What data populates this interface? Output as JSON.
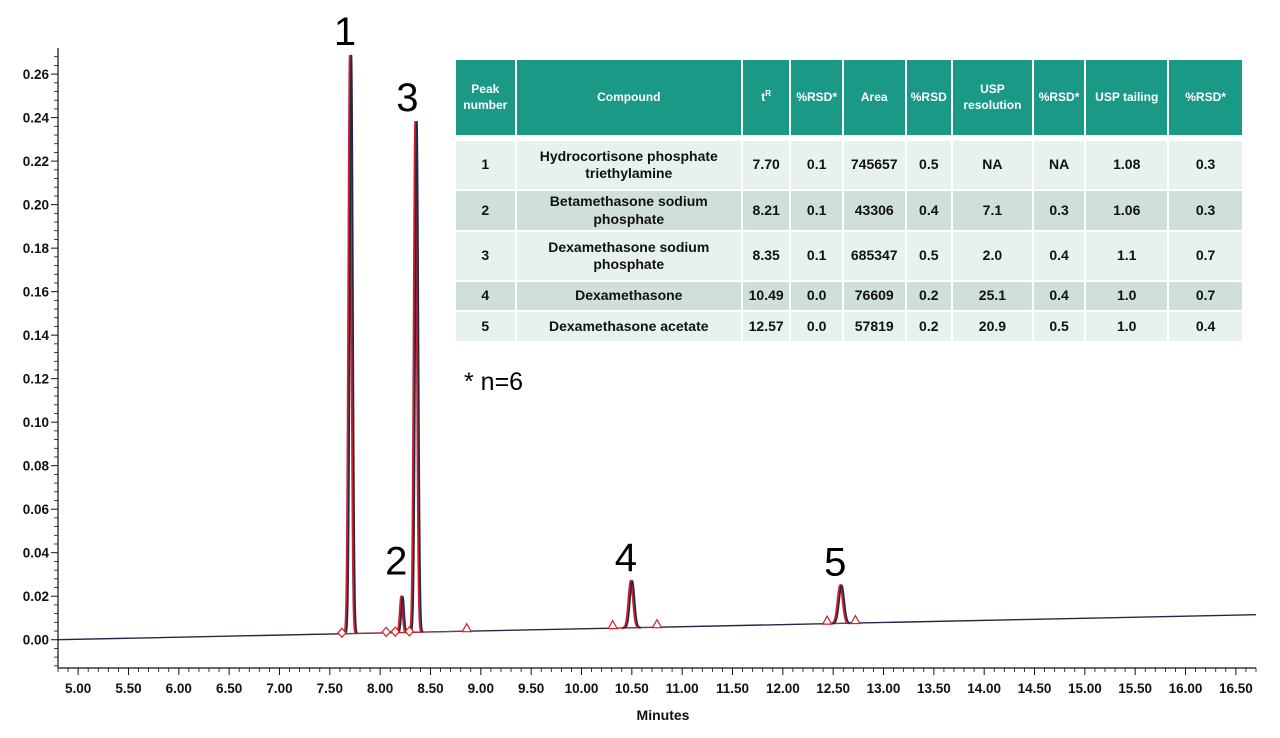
{
  "chart_data": {
    "type": "line",
    "xlabel": "Minutes",
    "ylabel": "",
    "xlim": [
      4.8,
      16.7
    ],
    "ylim": [
      -0.013,
      0.272
    ],
    "xticks": [
      "5.00",
      "5.50",
      "6.00",
      "6.50",
      "7.00",
      "7.50",
      "8.00",
      "8.50",
      "9.00",
      "9.50",
      "10.00",
      "10.50",
      "11.00",
      "11.50",
      "12.00",
      "12.50",
      "13.00",
      "13.50",
      "14.00",
      "14.50",
      "15.00",
      "15.50",
      "16.00",
      "16.50"
    ],
    "yticks": [
      "0.00",
      "0.02",
      "0.04",
      "0.06",
      "0.08",
      "0.10",
      "0.12",
      "0.14",
      "0.16",
      "0.18",
      "0.20",
      "0.22",
      "0.24",
      "0.26"
    ],
    "baseline": {
      "start": [
        4.8,
        0.0
      ],
      "end": [
        16.7,
        0.0115
      ]
    },
    "peaks": [
      {
        "label": "1",
        "time": 7.7,
        "height": 0.266,
        "width": 0.03
      },
      {
        "label": "2",
        "time": 8.21,
        "height": 0.0165,
        "width": 0.027
      },
      {
        "label": "3",
        "time": 8.35,
        "height": 0.235,
        "width": 0.031
      },
      {
        "label": "4",
        "time": 10.49,
        "height": 0.0215,
        "width": 0.045
      },
      {
        "label": "5",
        "time": 12.57,
        "height": 0.0175,
        "width": 0.05
      }
    ],
    "integration_markers": [
      {
        "x": 7.62,
        "shape": "diamond"
      },
      {
        "x": 8.06,
        "shape": "diamond"
      },
      {
        "x": 8.15,
        "shape": "diamond"
      },
      {
        "x": 8.29,
        "shape": "diamond"
      },
      {
        "x": 8.86,
        "shape": "triangle"
      },
      {
        "x": 10.31,
        "shape": "triangle"
      },
      {
        "x": 10.75,
        "shape": "triangle"
      },
      {
        "x": 12.44,
        "shape": "triangle"
      },
      {
        "x": 12.72,
        "shape": "triangle"
      }
    ],
    "colors": {
      "trace": "#1f2a44",
      "fit": "#d0202a",
      "baseline": "#1f2a44",
      "markers": "#d0202a",
      "axis": "#111111"
    },
    "grid": false,
    "legend": "none"
  },
  "table": {
    "headers": [
      "Peak number",
      "Compound",
      "t",
      "%RSD*",
      "Area",
      "%RSD",
      "USP resolution",
      "%RSD*",
      "USP tailing",
      "%RSD*"
    ],
    "tr_superscript": "R",
    "rows": [
      [
        "1",
        "Hydrocortisone phosphate triethylamine",
        "7.70",
        "0.1",
        "745657",
        "0.5",
        "NA",
        "NA",
        "1.08",
        "0.3"
      ],
      [
        "2",
        "Betamethasone sodium phosphate",
        "8.21",
        "0.1",
        "43306",
        "0.4",
        "7.1",
        "0.3",
        "1.06",
        "0.3"
      ],
      [
        "3",
        "Dexamethasone sodium phosphate",
        "8.35",
        "0.1",
        "685347",
        "0.5",
        "2.0",
        "0.4",
        "1.1",
        "0.7"
      ],
      [
        "4",
        "Dexamethasone",
        "10.49",
        "0.0",
        "76609",
        "0.2",
        "25.1",
        "0.4",
        "1.0",
        "0.7"
      ],
      [
        "5",
        "Dexamethasone acetate",
        "12.57",
        "0.0",
        "57819",
        "0.2",
        "20.9",
        "0.5",
        "1.0",
        "0.4"
      ]
    ],
    "footnote": "* n=6"
  },
  "colors": {
    "header_bg": "#1a9a86",
    "row_odd": "#cfe0db",
    "row_even": "#e7f1ee"
  }
}
